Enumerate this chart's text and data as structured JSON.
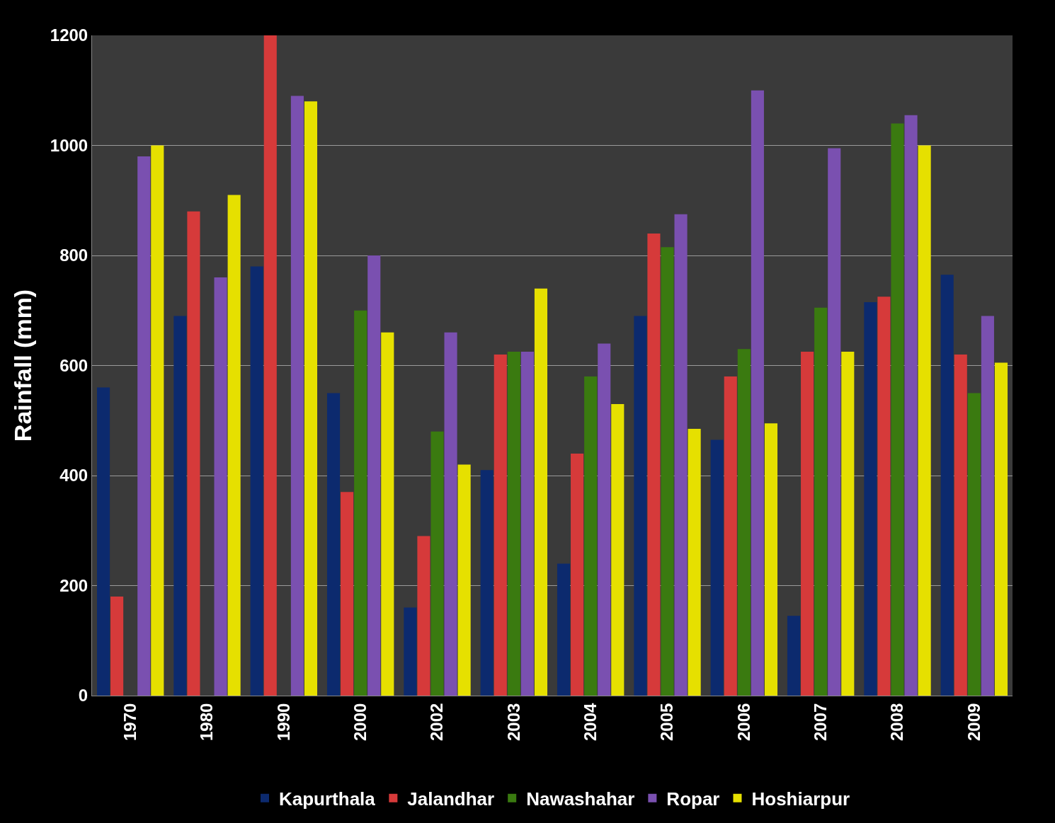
{
  "chart_data": {
    "type": "bar",
    "ylabel": "Rainfall (mm)",
    "categories": [
      "1970",
      "1980",
      "1990",
      "2000",
      "2002",
      "2003",
      "2004",
      "2005",
      "2006",
      "2007",
      "2008",
      "2009"
    ],
    "series": [
      {
        "name": "Kapurthala",
        "color": "#0c2a6e",
        "values": [
          560,
          690,
          780,
          550,
          160,
          410,
          240,
          690,
          465,
          145,
          715,
          765
        ]
      },
      {
        "name": "Jalandhar",
        "color": "#d63a3a",
        "values": [
          180,
          880,
          1200,
          370,
          290,
          620,
          440,
          840,
          580,
          625,
          725,
          620
        ]
      },
      {
        "name": "Nawashahar",
        "color": "#3a7a10",
        "values": [
          null,
          null,
          null,
          700,
          480,
          625,
          580,
          815,
          630,
          705,
          1040,
          550
        ]
      },
      {
        "name": "Ropar",
        "color": "#7a50b0",
        "values": [
          980,
          760,
          1090,
          800,
          660,
          625,
          640,
          875,
          1100,
          995,
          1055,
          690
        ]
      },
      {
        "name": "Hoshiarpur",
        "color": "#e6e000",
        "values": [
          1000,
          910,
          1080,
          660,
          420,
          740,
          530,
          485,
          495,
          625,
          1000,
          605
        ]
      }
    ],
    "ylim": [
      0,
      1200
    ],
    "yticks": [
      0,
      200,
      400,
      600,
      800,
      1000,
      1200
    ],
    "grid": "y",
    "legend": "bottom"
  }
}
